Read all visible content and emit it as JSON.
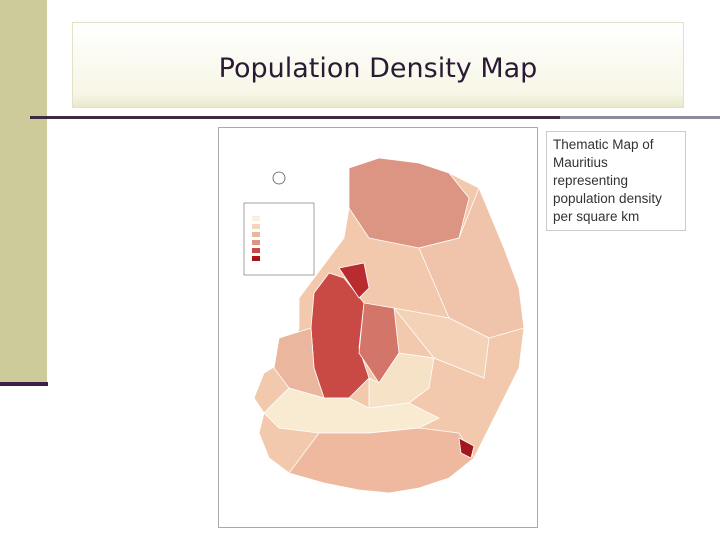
{
  "header": {
    "title": "Population Density Map"
  },
  "caption": "Thematic Map of Mauritius representing population density per square km"
}
